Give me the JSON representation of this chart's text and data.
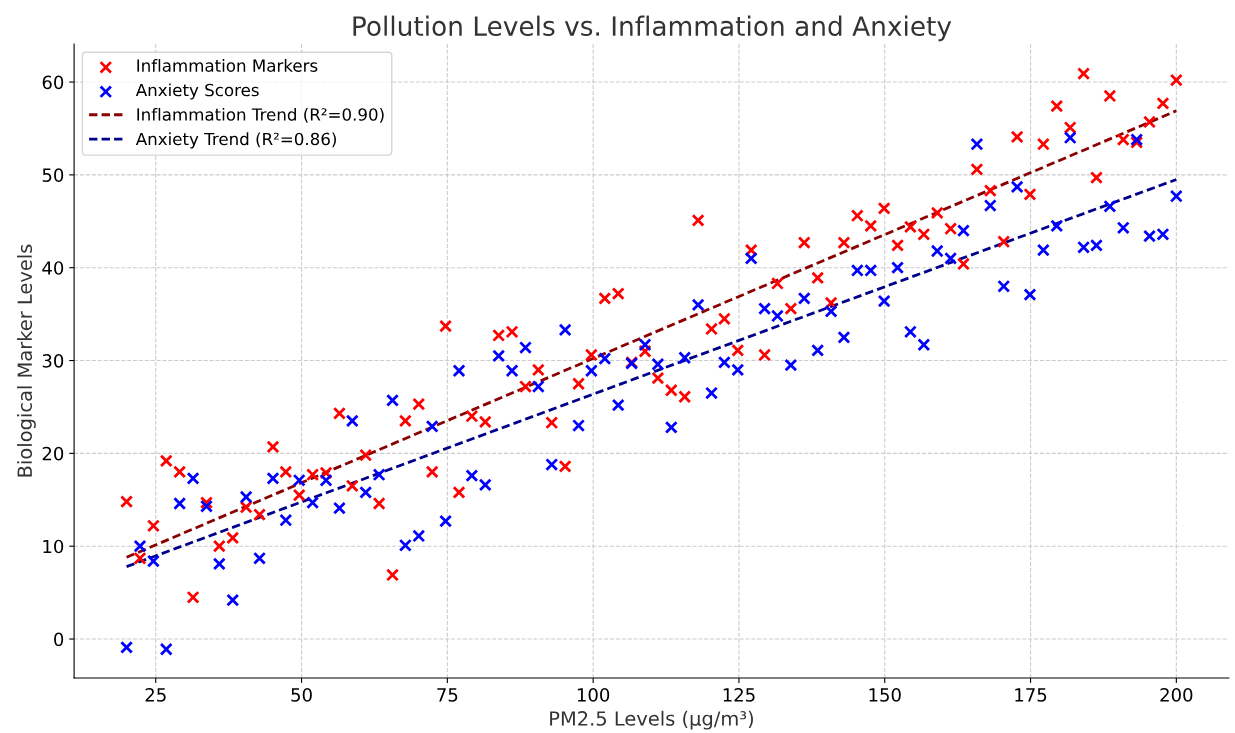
{
  "chart_data": {
    "type": "scatter",
    "title": "Pollution Levels vs. Inflammation and Anxiety",
    "xlabel": "PM2.5 Levels (µg/m³)",
    "ylabel": "Biological Marker Levels",
    "x": [
      20.0,
      22.3,
      24.6,
      26.8,
      29.1,
      31.4,
      33.7,
      35.9,
      38.2,
      40.5,
      42.8,
      45.1,
      47.3,
      49.6,
      51.9,
      54.2,
      56.5,
      58.7,
      61.0,
      63.3,
      65.6,
      67.8,
      70.1,
      72.4,
      74.7,
      77.0,
      79.2,
      81.5,
      83.8,
      86.1,
      88.4,
      90.6,
      92.9,
      95.2,
      97.5,
      99.7,
      102.0,
      104.3,
      106.6,
      108.9,
      111.1,
      113.4,
      115.7,
      118.0,
      120.3,
      122.5,
      124.8,
      127.1,
      129.4,
      131.6,
      133.9,
      136.2,
      138.5,
      140.8,
      143.0,
      145.3,
      147.6,
      149.9,
      152.2,
      154.4,
      156.7,
      159.0,
      161.3,
      163.5,
      165.8,
      168.1,
      170.4,
      172.7,
      174.9,
      177.2,
      179.5,
      181.8,
      184.1,
      186.3,
      188.6,
      190.9,
      193.2,
      195.4,
      197.7,
      200.0
    ],
    "series": [
      {
        "name": "Inflammation Markers",
        "marker": "cross",
        "color": "#ff0000",
        "values": [
          14.8,
          8.7,
          12.2,
          19.2,
          18.0,
          4.5,
          14.7,
          10.0,
          10.9,
          14.2,
          13.4,
          20.7,
          18.0,
          15.5,
          17.7,
          17.9,
          24.3,
          16.5,
          19.8,
          14.6,
          6.9,
          23.5,
          25.3,
          18.0,
          33.7,
          15.8,
          24.0,
          23.4,
          32.7,
          33.1,
          27.2,
          29.0,
          23.3,
          18.6,
          27.5,
          30.6,
          36.7,
          37.2,
          29.8,
          31.0,
          28.1,
          26.8,
          26.1,
          45.1,
          33.4,
          34.5,
          31.1,
          41.9,
          30.6,
          38.3,
          35.6,
          42.7,
          38.9,
          36.2,
          42.7,
          45.6,
          44.5,
          46.4,
          42.4,
          44.4,
          43.6,
          45.9,
          44.2,
          40.4,
          50.6,
          48.3,
          42.8,
          54.1,
          47.9,
          53.3,
          57.4,
          55.1,
          60.9,
          49.7,
          58.5,
          53.8,
          53.5,
          55.7,
          57.7,
          60.2
        ]
      },
      {
        "name": "Anxiety Scores",
        "marker": "cross",
        "color": "#0000ff",
        "values": [
          -0.9,
          10.0,
          8.4,
          -1.1,
          14.6,
          17.3,
          14.3,
          8.1,
          4.2,
          15.3,
          8.7,
          17.3,
          12.8,
          17.1,
          14.7,
          17.1,
          14.1,
          23.5,
          15.8,
          17.7,
          25.7,
          10.1,
          11.1,
          22.9,
          12.7,
          28.9,
          17.6,
          16.6,
          30.5,
          28.9,
          31.4,
          27.2,
          18.8,
          33.3,
          23.0,
          28.9,
          30.2,
          25.2,
          29.7,
          31.7,
          29.6,
          22.8,
          30.3,
          36.0,
          26.5,
          29.8,
          29.0,
          41.0,
          35.6,
          34.8,
          29.5,
          36.7,
          31.1,
          35.3,
          32.5,
          39.7,
          39.7,
          36.4,
          40.0,
          33.1,
          31.7,
          41.8,
          41.0,
          44.0,
          53.3,
          46.7,
          38.0,
          48.7,
          37.1,
          41.9,
          44.5,
          54.0,
          42.2,
          42.4,
          46.6,
          44.3,
          53.8,
          43.4,
          43.6,
          47.7
        ]
      },
      {
        "name": "Inflammation Trend (R²=0.90)",
        "type": "line",
        "line_style": "dashed",
        "marker": "none",
        "color": "#8b0000",
        "x": [
          20.0,
          110.0,
          200.0
        ],
        "values": [
          8.8,
          32.9,
          56.9
        ]
      },
      {
        "name": "Anxiety Trend (R²=0.86)",
        "type": "line",
        "line_style": "dashed",
        "marker": "none",
        "color": "#00008b",
        "x": [
          20.0,
          110.0,
          200.0
        ],
        "values": [
          7.8,
          28.7,
          49.5
        ]
      }
    ],
    "xlim": [
      11,
      209
    ],
    "xticks": [
      25,
      50,
      75,
      100,
      125,
      150,
      175,
      200
    ],
    "ylim": [
      -4.2,
      64.1
    ],
    "yticks": [
      0,
      10,
      20,
      30,
      40,
      50,
      60
    ],
    "grid": true,
    "legend": "top left"
  }
}
